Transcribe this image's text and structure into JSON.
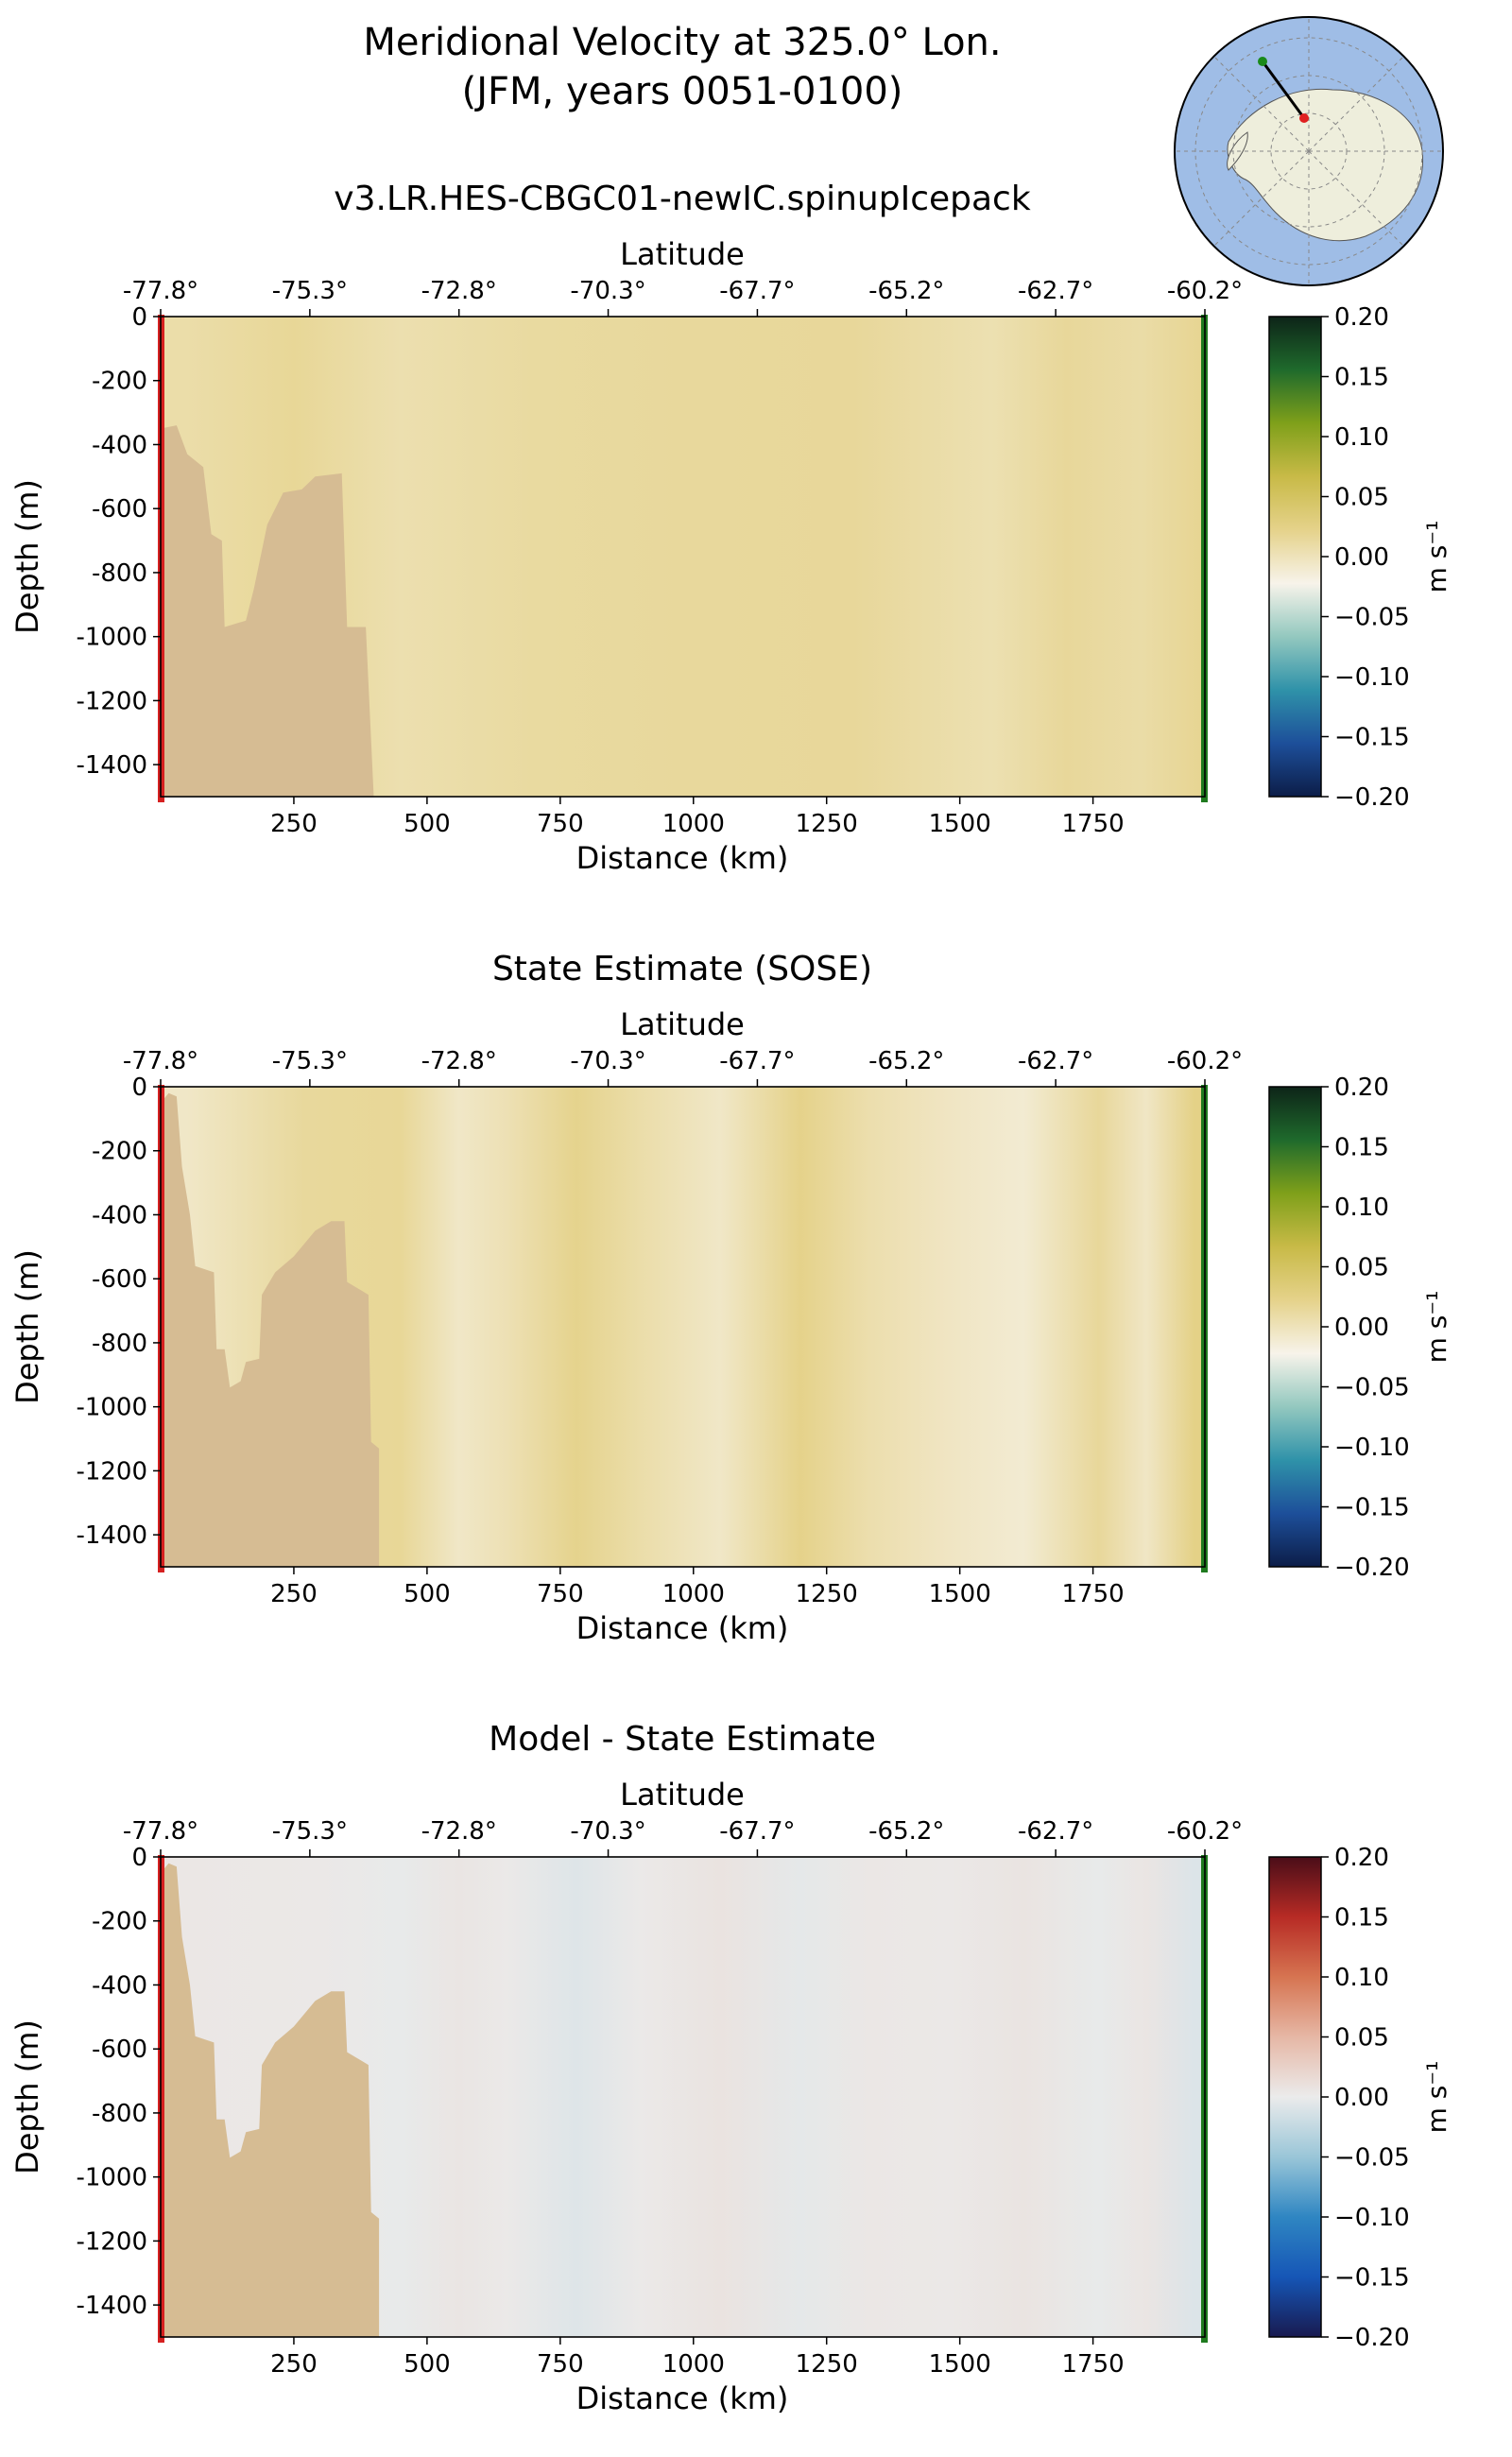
{
  "figure": {
    "title_line1": "Meridional Velocity at 325.0° Lon.",
    "title_line2": "(JFM, years 0051-0100)"
  },
  "colors": {
    "bathymetry": "#d6bc93",
    "left_marker": "#d62020",
    "right_marker": "#1f7a1f",
    "ocean_map": "#9fbde6",
    "land_map": "#eeeedc",
    "seq_colormap": [
      "#0c1d48",
      "#1d4f9a",
      "#2f92a9",
      "#93c8bf",
      "#f7f3ea",
      "#e5d28a",
      "#c8ba47",
      "#7fa01a",
      "#1f6a2c",
      "#0d2418"
    ],
    "diff_colormap": [
      "#181a50",
      "#1656b6",
      "#2f86c2",
      "#9ac6d8",
      "#ebebeb",
      "#e6b7a5",
      "#d67451",
      "#b72b25",
      "#4a0d18"
    ]
  },
  "chart_data": [
    {
      "type": "heatmap",
      "title": "v3.LR.HES-CBGC01-newIC.spinupIcepack",
      "xlabel": "Distance (km)",
      "ylabel": "Depth (m)",
      "top_xlabel": "Latitude",
      "xlim": [
        0,
        1960
      ],
      "ylim": [
        -1500,
        0
      ],
      "x_ticks": [
        250,
        500,
        750,
        1000,
        1250,
        1500,
        1750
      ],
      "y_ticks": [
        0,
        -200,
        -400,
        -600,
        -800,
        -1000,
        -1200,
        -1400
      ],
      "lat_ticks": [
        "-77.8°",
        "-75.3°",
        "-72.8°",
        "-70.3°",
        "-67.7°",
        "-65.2°",
        "-62.7°",
        "-60.2°"
      ],
      "colorbar": {
        "label": "m s⁻¹",
        "ticks": [
          "0.20",
          "0.15",
          "0.10",
          "0.05",
          "0.00",
          "−0.05",
          "−0.10",
          "−0.15",
          "−0.20"
        ],
        "range": [
          -0.2,
          0.2
        ],
        "colormap": "seq"
      },
      "column_values": [
        {
          "x": 50,
          "v": 0.008
        },
        {
          "x": 250,
          "v": 0.016
        },
        {
          "x": 450,
          "v": 0.005
        },
        {
          "x": 700,
          "v": 0.012
        },
        {
          "x": 1000,
          "v": 0.014
        },
        {
          "x": 1300,
          "v": 0.015
        },
        {
          "x": 1560,
          "v": 0.004
        },
        {
          "x": 1700,
          "v": 0.015
        },
        {
          "x": 1840,
          "v": 0.009
        },
        {
          "x": 1950,
          "v": 0.018
        }
      ],
      "bathymetry": [
        {
          "x": 0,
          "z": -350
        },
        {
          "x": 30,
          "z": -340
        },
        {
          "x": 50,
          "z": -430
        },
        {
          "x": 80,
          "z": -470
        },
        {
          "x": 95,
          "z": -680
        },
        {
          "x": 115,
          "z": -700
        },
        {
          "x": 120,
          "z": -970
        },
        {
          "x": 160,
          "z": -950
        },
        {
          "x": 175,
          "z": -850
        },
        {
          "x": 200,
          "z": -650
        },
        {
          "x": 230,
          "z": -550
        },
        {
          "x": 265,
          "z": -540
        },
        {
          "x": 290,
          "z": -500
        },
        {
          "x": 340,
          "z": -490
        },
        {
          "x": 350,
          "z": -970
        },
        {
          "x": 385,
          "z": -970
        },
        {
          "x": 400,
          "z": -1500
        }
      ]
    },
    {
      "type": "heatmap",
      "title": "State Estimate (SOSE)",
      "xlabel": "Distance (km)",
      "ylabel": "Depth (m)",
      "top_xlabel": "Latitude",
      "xlim": [
        0,
        1960
      ],
      "ylim": [
        -1500,
        0
      ],
      "x_ticks": [
        250,
        500,
        750,
        1000,
        1250,
        1500,
        1750
      ],
      "y_ticks": [
        0,
        -200,
        -400,
        -600,
        -800,
        -1000,
        -1200,
        -1400
      ],
      "lat_ticks": [
        "-77.8°",
        "-75.3°",
        "-72.8°",
        "-70.3°",
        "-67.7°",
        "-65.2°",
        "-62.7°",
        "-60.2°"
      ],
      "colorbar": {
        "label": "m s⁻¹",
        "ticks": [
          "0.20",
          "0.15",
          "0.10",
          "0.05",
          "0.00",
          "−0.05",
          "−0.10",
          "−0.15",
          "−0.20"
        ],
        "range": [
          -0.2,
          0.2
        ],
        "colormap": "seq"
      },
      "column_values": [
        {
          "x": 50,
          "v": -0.006
        },
        {
          "x": 270,
          "v": 0.014
        },
        {
          "x": 450,
          "v": 0.016
        },
        {
          "x": 560,
          "v": -0.006
        },
        {
          "x": 650,
          "v": 0.003
        },
        {
          "x": 780,
          "v": 0.021
        },
        {
          "x": 900,
          "v": 0.008
        },
        {
          "x": 1050,
          "v": -0.006
        },
        {
          "x": 1200,
          "v": 0.022
        },
        {
          "x": 1330,
          "v": 0.006
        },
        {
          "x": 1480,
          "v": -0.004
        },
        {
          "x": 1620,
          "v": -0.011
        },
        {
          "x": 1760,
          "v": 0.015
        },
        {
          "x": 1850,
          "v": -0.005
        },
        {
          "x": 1940,
          "v": 0.024
        }
      ],
      "bathymetry": [
        {
          "x": 0,
          "z": -50
        },
        {
          "x": 15,
          "z": -20
        },
        {
          "x": 30,
          "z": -30
        },
        {
          "x": 40,
          "z": -250
        },
        {
          "x": 55,
          "z": -400
        },
        {
          "x": 65,
          "z": -560
        },
        {
          "x": 100,
          "z": -580
        },
        {
          "x": 105,
          "z": -820
        },
        {
          "x": 120,
          "z": -820
        },
        {
          "x": 130,
          "z": -940
        },
        {
          "x": 150,
          "z": -920
        },
        {
          "x": 160,
          "z": -860
        },
        {
          "x": 185,
          "z": -850
        },
        {
          "x": 190,
          "z": -650
        },
        {
          "x": 215,
          "z": -580
        },
        {
          "x": 250,
          "z": -530
        },
        {
          "x": 290,
          "z": -450
        },
        {
          "x": 320,
          "z": -420
        },
        {
          "x": 345,
          "z": -420
        },
        {
          "x": 350,
          "z": -610
        },
        {
          "x": 390,
          "z": -650
        },
        {
          "x": 395,
          "z": -1110
        },
        {
          "x": 410,
          "z": -1130
        },
        {
          "x": 410,
          "z": -1500
        }
      ]
    },
    {
      "type": "heatmap",
      "title": "Model - State Estimate",
      "xlabel": "Distance (km)",
      "ylabel": "Depth (m)",
      "top_xlabel": "Latitude",
      "xlim": [
        0,
        1960
      ],
      "ylim": [
        -1500,
        0
      ],
      "x_ticks": [
        250,
        500,
        750,
        1000,
        1250,
        1500,
        1750
      ],
      "y_ticks": [
        0,
        -200,
        -400,
        -600,
        -800,
        -1000,
        -1200,
        -1400
      ],
      "lat_ticks": [
        "-77.8°",
        "-75.3°",
        "-72.8°",
        "-70.3°",
        "-67.7°",
        "-65.2°",
        "-62.7°",
        "-60.2°"
      ],
      "colorbar": {
        "label": "m s⁻¹",
        "ticks": [
          "0.20",
          "0.15",
          "0.10",
          "0.05",
          "0.00",
          "−0.05",
          "−0.10",
          "−0.15",
          "−0.20"
        ],
        "range": [
          -0.2,
          0.2
        ],
        "colormap": "diff"
      },
      "column_values": [
        {
          "x": 50,
          "v": 0.004
        },
        {
          "x": 300,
          "v": 0.003
        },
        {
          "x": 450,
          "v": -0.002
        },
        {
          "x": 560,
          "v": 0.006
        },
        {
          "x": 650,
          "v": 0.002
        },
        {
          "x": 780,
          "v": -0.008
        },
        {
          "x": 900,
          "v": 0.002
        },
        {
          "x": 1050,
          "v": 0.008
        },
        {
          "x": 1200,
          "v": -0.004
        },
        {
          "x": 1330,
          "v": 0.004
        },
        {
          "x": 1480,
          "v": 0.003
        },
        {
          "x": 1620,
          "v": 0.007
        },
        {
          "x": 1760,
          "v": -0.002
        },
        {
          "x": 1850,
          "v": 0.006
        },
        {
          "x": 1940,
          "v": -0.009
        }
      ],
      "bathymetry": [
        {
          "x": 0,
          "z": -50
        },
        {
          "x": 15,
          "z": -20
        },
        {
          "x": 30,
          "z": -30
        },
        {
          "x": 40,
          "z": -250
        },
        {
          "x": 55,
          "z": -400
        },
        {
          "x": 65,
          "z": -560
        },
        {
          "x": 100,
          "z": -580
        },
        {
          "x": 105,
          "z": -820
        },
        {
          "x": 120,
          "z": -820
        },
        {
          "x": 130,
          "z": -940
        },
        {
          "x": 150,
          "z": -920
        },
        {
          "x": 160,
          "z": -860
        },
        {
          "x": 185,
          "z": -850
        },
        {
          "x": 190,
          "z": -650
        },
        {
          "x": 215,
          "z": -580
        },
        {
          "x": 250,
          "z": -530
        },
        {
          "x": 290,
          "z": -450
        },
        {
          "x": 320,
          "z": -420
        },
        {
          "x": 345,
          "z": -420
        },
        {
          "x": 350,
          "z": -610
        },
        {
          "x": 390,
          "z": -650
        },
        {
          "x": 395,
          "z": -1110
        },
        {
          "x": 410,
          "z": -1130
        },
        {
          "x": 410,
          "z": -1500
        }
      ]
    }
  ]
}
